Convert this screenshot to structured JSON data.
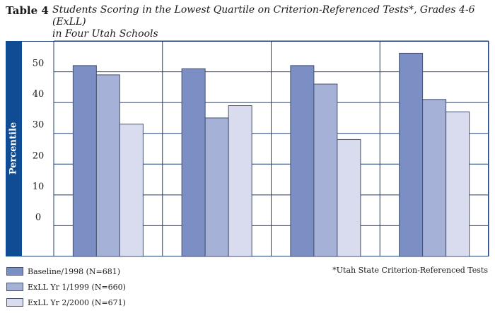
{
  "header": {
    "table_label": "Table 4",
    "title_line1": "Students Scoring in the Lowest Quartile on Criterion-Referenced Tests*, Grades 4-6 (ExLL)",
    "title_line2": "in Four Utah Schools"
  },
  "footnote": "*Utah State Criterion-Referenced Tests",
  "colors": {
    "frame": "#1d3f73",
    "ylabel_band": "#0f4c94",
    "gridline": "#1d3f73",
    "series": [
      "#7b8fc4",
      "#a5b1d6",
      "#d9dcee"
    ]
  },
  "chart_data": {
    "type": "bar",
    "title": "",
    "xlabel": "",
    "ylabel": "Percentile",
    "categories": [
      "",
      "",
      "",
      ""
    ],
    "yticks": [
      0,
      10,
      20,
      30,
      40,
      50
    ],
    "ylim": [
      -10,
      60
    ],
    "grid": true,
    "legend_position": "bottom-left",
    "series": [
      {
        "name": "Baseline/1998 (N=681)",
        "values": [
          52,
          51,
          52,
          56
        ]
      },
      {
        "name": "ExLL Yr 1/1999 (N=660)",
        "values": [
          49,
          35,
          46,
          41
        ]
      },
      {
        "name": "ExLL Yr 2/2000 (N=671)",
        "values": [
          33,
          39,
          28,
          37
        ]
      }
    ]
  }
}
